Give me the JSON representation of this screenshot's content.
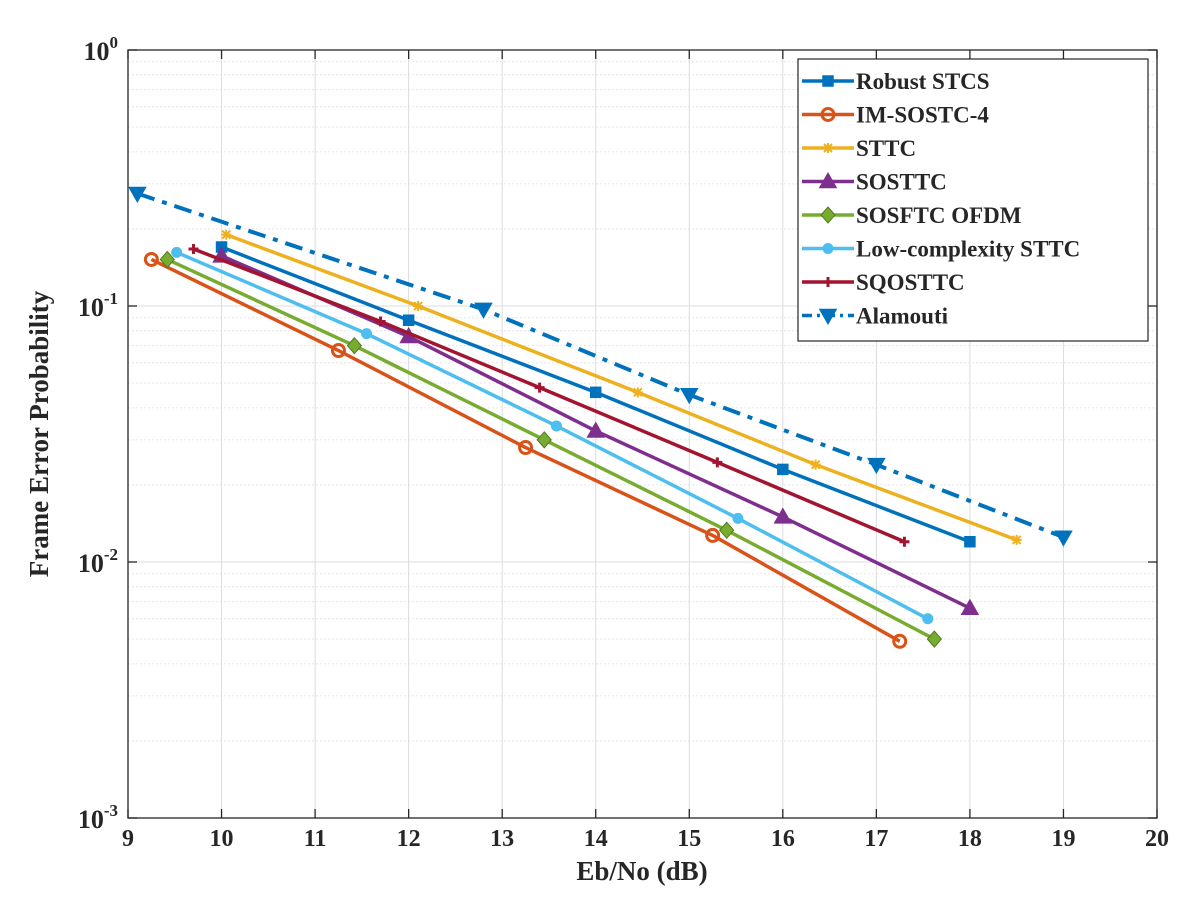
{
  "chart_data": {
    "type": "line",
    "title": "",
    "xlabel": "Eb/No (dB)",
    "ylabel": "Frame Error Probability",
    "xlim": [
      9,
      20
    ],
    "ylim": [
      0.001,
      1
    ],
    "yscale": "log",
    "grid": true,
    "legend_position": "top-right",
    "x_ticks": [
      "9",
      "10",
      "11",
      "12",
      "13",
      "14",
      "15",
      "16",
      "17",
      "18",
      "19",
      "20"
    ],
    "y_ticks": [
      {
        "base": "10",
        "exp": "0",
        "value": 1
      },
      {
        "base": "10",
        "exp": "-1",
        "value": 0.1
      },
      {
        "base": "10",
        "exp": "-2",
        "value": 0.01
      },
      {
        "base": "10",
        "exp": "-3",
        "value": 0.001
      }
    ],
    "series": [
      {
        "name": "Robust STCS",
        "color": "#0072BD",
        "marker": "square",
        "dash": "solid",
        "x": [
          10,
          12,
          14,
          16,
          18
        ],
        "y": [
          0.17,
          0.088,
          0.046,
          0.023,
          0.012
        ]
      },
      {
        "name": "IM-SOSTC-4",
        "color": "#D95319",
        "marker": "circle",
        "dash": "solid",
        "x": [
          9.25,
          11.25,
          13.25,
          15.25,
          17.25
        ],
        "y": [
          0.152,
          0.067,
          0.028,
          0.0127,
          0.0049
        ]
      },
      {
        "name": "STTC",
        "color": "#EDB120",
        "marker": "star",
        "dash": "solid",
        "x": [
          10.05,
          12.1,
          14.45,
          16.35,
          18.5
        ],
        "y": [
          0.19,
          0.1,
          0.046,
          0.024,
          0.0122
        ]
      },
      {
        "name": "SOSTTC",
        "color": "#7E2F8E",
        "marker": "triangle-up",
        "dash": "solid",
        "x": [
          10,
          12,
          14,
          16,
          18
        ],
        "y": [
          0.157,
          0.076,
          0.0325,
          0.015,
          0.0066
        ]
      },
      {
        "name": "SOSFTC OFDM",
        "color": "#77AC30",
        "marker": "diamond",
        "dash": "solid",
        "x": [
          9.42,
          11.42,
          13.45,
          15.4,
          17.62
        ],
        "y": [
          0.152,
          0.07,
          0.03,
          0.0133,
          0.005
        ]
      },
      {
        "name": "Low-complexity STTC",
        "color": "#4DBEEE",
        "marker": "dot",
        "dash": "solid",
        "x": [
          9.52,
          11.55,
          13.58,
          15.52,
          17.55
        ],
        "y": [
          0.162,
          0.078,
          0.034,
          0.0148,
          0.006
        ]
      },
      {
        "name": "SQOSTTC",
        "color": "#A2142F",
        "marker": "plus",
        "dash": "solid",
        "x": [
          9.7,
          11.7,
          13.4,
          15.3,
          17.3
        ],
        "y": [
          0.167,
          0.087,
          0.048,
          0.0245,
          0.012
        ]
      },
      {
        "name": "Alamouti",
        "color": "#0072BD",
        "marker": "triangle-down",
        "dash": "dashdot",
        "x": [
          9.1,
          12.8,
          15,
          17,
          19
        ],
        "y": [
          0.275,
          0.097,
          0.045,
          0.024,
          0.0125
        ]
      }
    ]
  }
}
